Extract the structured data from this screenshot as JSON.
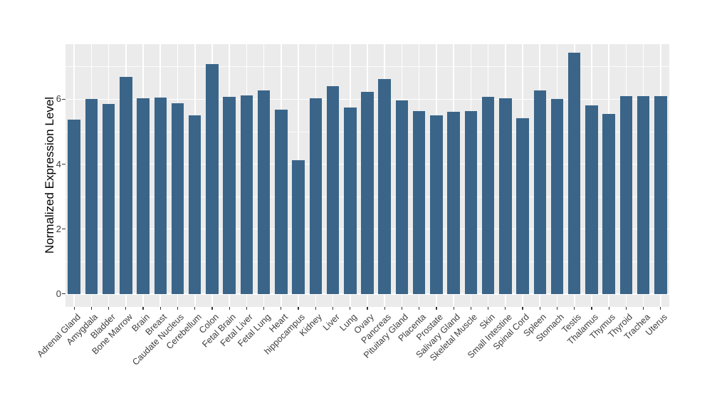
{
  "chart_data": {
    "type": "bar",
    "title": "",
    "xlabel": "",
    "ylabel": "Normalized Expression Level",
    "categories": [
      "Adrenal Gland",
      "Amygdala",
      "Bladder",
      "Bone Marrow",
      "Brain",
      "Breast",
      "Caudate Nucleus",
      "Cerebellum",
      "Colon",
      "Fetal Brain",
      "Fetal Liver",
      "Fetal Lung",
      "Heart",
      "hippocampus",
      "Kidney",
      "Liver",
      "Lung",
      "Ovary",
      "Pancreas",
      "Pituitary Gland",
      "Placenta",
      "Prostate",
      "Salivary Gland",
      "Skeletal Muscle",
      "Skin",
      "Small Intestine",
      "Spinal Cord",
      "Spleen",
      "Stomach",
      "Testis",
      "Thalamus",
      "Thymus",
      "Thyroid",
      "Trachea",
      "Uterus"
    ],
    "values": [
      5.38,
      6.0,
      5.85,
      6.7,
      6.03,
      6.06,
      5.87,
      5.5,
      7.08,
      6.08,
      6.11,
      6.28,
      5.69,
      4.13,
      6.04,
      6.41,
      5.75,
      6.24,
      6.62,
      5.96,
      5.63,
      5.5,
      5.61,
      5.63,
      6.07,
      6.03,
      5.41,
      6.28,
      6.0,
      7.43,
      5.81,
      5.55,
      6.09,
      6.09,
      6.09
    ],
    "yticks": [
      0,
      2,
      4,
      6
    ],
    "minor_yticks": [
      1,
      3,
      5,
      7
    ],
    "ylim": [
      -0.4,
      7.7
    ],
    "legend": "none",
    "grid": "on",
    "bar_color": "#3A6589",
    "panel_bg": "#EBEBEB",
    "grid_color": "#FFFFFF",
    "axis_text_color": "#3d3d3d"
  }
}
